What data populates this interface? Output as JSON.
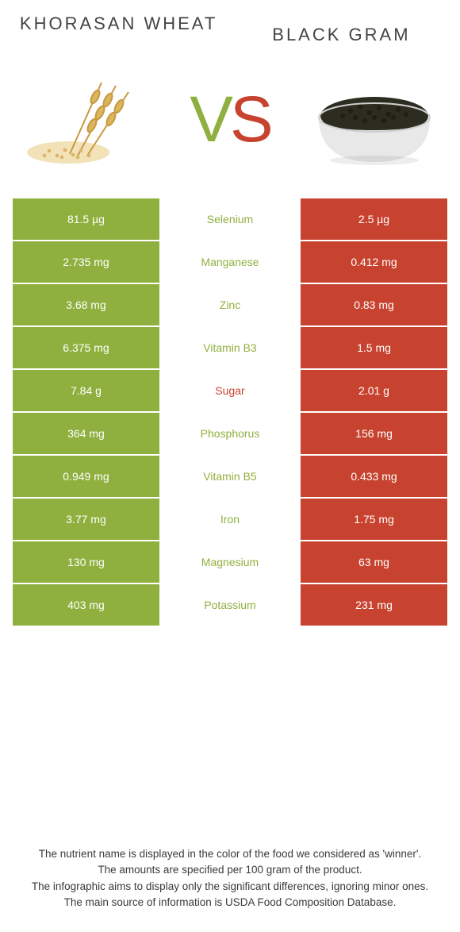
{
  "header": {
    "left_title": "Khorasan wheat",
    "right_title": "Black gram"
  },
  "vs": {
    "v": "V",
    "s": "S"
  },
  "colors": {
    "left": "#8fb03e",
    "right": "#c7432f",
    "nutrient_default": "#8fb03e",
    "nutrient_sugar": "#c7432f",
    "background": "#ffffff",
    "text": "#444444"
  },
  "table": {
    "rows": [
      {
        "left": "81.5 µg",
        "name": "Selenium",
        "right": "2.5 µg",
        "name_color": "#8fb03e"
      },
      {
        "left": "2.735 mg",
        "name": "Manganese",
        "right": "0.412 mg",
        "name_color": "#8fb03e"
      },
      {
        "left": "3.68 mg",
        "name": "Zinc",
        "right": "0.83 mg",
        "name_color": "#8fb03e"
      },
      {
        "left": "6.375 mg",
        "name": "Vitamin B3",
        "right": "1.5 mg",
        "name_color": "#8fb03e"
      },
      {
        "left": "7.84 g",
        "name": "Sugar",
        "right": "2.01 g",
        "name_color": "#c7432f"
      },
      {
        "left": "364 mg",
        "name": "Phosphorus",
        "right": "156 mg",
        "name_color": "#8fb03e"
      },
      {
        "left": "0.949 mg",
        "name": "Vitamin B5",
        "right": "0.433 mg",
        "name_color": "#8fb03e"
      },
      {
        "left": "3.77 mg",
        "name": "Iron",
        "right": "1.75 mg",
        "name_color": "#8fb03e"
      },
      {
        "left": "130 mg",
        "name": "Magnesium",
        "right": "63 mg",
        "name_color": "#8fb03e"
      },
      {
        "left": "403 mg",
        "name": "Potassium",
        "right": "231 mg",
        "name_color": "#8fb03e"
      }
    ]
  },
  "footer": {
    "line1": "The nutrient name is displayed in the color of the food we considered as 'winner'.",
    "line2": "The amounts are specified per 100 gram of the product.",
    "line3": "The infographic aims to display only the significant differences, ignoring minor ones.",
    "line4": "The main source of information is USDA Food Composition Database."
  },
  "icons": {
    "left_food": "wheat",
    "right_food": "black-gram-bowl"
  }
}
